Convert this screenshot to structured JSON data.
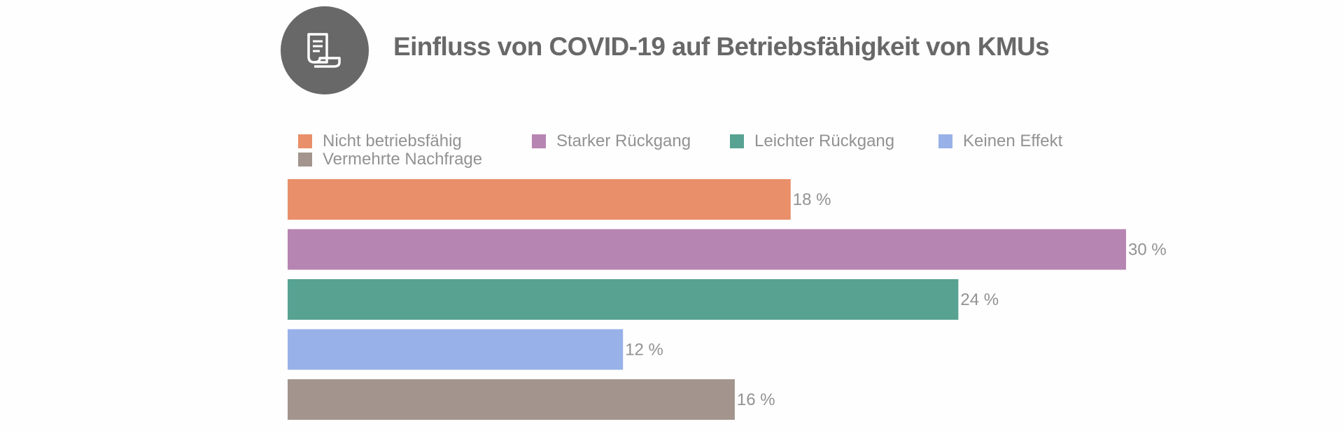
{
  "header": {
    "icon": "document-scroll-icon",
    "title": "Einfluss von COVID-19 auf Betriebsfähigkeit von KMUs"
  },
  "chart_data": {
    "type": "bar",
    "orientation": "horizontal",
    "title": "Einfluss von COVID-19 auf Betriebsfähigkeit von KMUs",
    "xlabel": "",
    "ylabel": "",
    "categories": [
      "Nicht betriebsfähig",
      "Starker Rückgang",
      "Leichter Rückgang",
      "Keinen Effekt",
      "Vermehrte Nachfrage"
    ],
    "values": [
      18,
      30,
      24,
      12,
      16
    ],
    "value_labels": [
      "18 %",
      "30 %",
      "24 %",
      "12 %",
      "16 %"
    ],
    "colors": [
      "#e98f6a",
      "#b785b2",
      "#58a292",
      "#98b1e8",
      "#a3958d"
    ],
    "xlim": [
      0,
      30
    ],
    "grid": false,
    "legend": {
      "placement": "top",
      "entries": [
        {
          "label": "Nicht betriebsfähig",
          "color": "#e98f6a"
        },
        {
          "label": "Starker Rückgang",
          "color": "#b785b2"
        },
        {
          "label": "Leichter Rückgang",
          "color": "#58a292"
        },
        {
          "label": "Keinen Effekt",
          "color": "#98b1e8"
        },
        {
          "label": "Vermehrte Nachfrage",
          "color": "#a3958d"
        }
      ]
    }
  }
}
